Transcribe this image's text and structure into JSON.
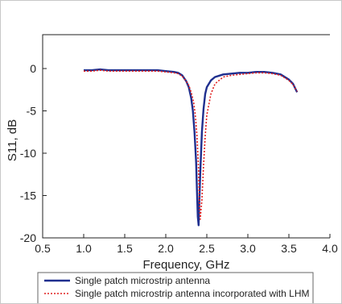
{
  "chart_data": {
    "type": "line",
    "title": "",
    "xlabel": "Frequency, GHz",
    "ylabel": "S11, dB",
    "xlim": [
      0.5,
      4.0
    ],
    "ylim": [
      -20,
      4
    ],
    "x_ticks": [
      "0.5",
      "1.0",
      "1.5",
      "2.0",
      "2.5",
      "3.0",
      "3.5",
      "4.0"
    ],
    "y_ticks": [
      "0",
      "-5",
      "-10",
      "-15",
      "-20"
    ],
    "grid": false,
    "legend_position": "bottom",
    "series": [
      {
        "name": "Single patch microstrip antenna",
        "color": "#1f2f8f",
        "style": "solid",
        "x": [
          1.0,
          1.1,
          1.2,
          1.3,
          1.4,
          1.5,
          1.6,
          1.7,
          1.8,
          1.9,
          2.0,
          2.1,
          2.15,
          2.2,
          2.25,
          2.28,
          2.31,
          2.33,
          2.35,
          2.37,
          2.38,
          2.39,
          2.4,
          2.42,
          2.44,
          2.46,
          2.48,
          2.5,
          2.55,
          2.6,
          2.7,
          2.8,
          2.9,
          3.0,
          3.1,
          3.2,
          3.3,
          3.4,
          3.5,
          3.55,
          3.6
        ],
        "y": [
          -0.2,
          -0.2,
          -0.1,
          -0.2,
          -0.2,
          -0.2,
          -0.2,
          -0.2,
          -0.2,
          -0.2,
          -0.3,
          -0.4,
          -0.5,
          -0.8,
          -1.5,
          -2.2,
          -3.5,
          -5.0,
          -7.5,
          -11.0,
          -14.5,
          -17.5,
          -18.5,
          -12.5,
          -7.5,
          -4.8,
          -3.0,
          -2.2,
          -1.4,
          -1.0,
          -0.7,
          -0.6,
          -0.5,
          -0.5,
          -0.4,
          -0.4,
          -0.5,
          -0.7,
          -1.3,
          -1.8,
          -2.8
        ]
      },
      {
        "name": "Single patch microstrip antenna incorporated with LHM",
        "color": "#e02020",
        "style": "dotted",
        "x": [
          1.0,
          1.1,
          1.2,
          1.3,
          1.4,
          1.5,
          1.6,
          1.7,
          1.8,
          1.9,
          2.0,
          2.1,
          2.15,
          2.2,
          2.25,
          2.28,
          2.31,
          2.34,
          2.36,
          2.38,
          2.4,
          2.41,
          2.42,
          2.44,
          2.46,
          2.48,
          2.5,
          2.55,
          2.6,
          2.7,
          2.8,
          2.9,
          3.0,
          3.1,
          3.2,
          3.3,
          3.4,
          3.5,
          3.55,
          3.6
        ],
        "y": [
          -0.3,
          -0.3,
          -0.2,
          -0.3,
          -0.3,
          -0.3,
          -0.3,
          -0.3,
          -0.3,
          -0.3,
          -0.4,
          -0.5,
          -0.6,
          -0.9,
          -1.5,
          -2.0,
          -2.8,
          -4.0,
          -5.5,
          -8.0,
          -12.0,
          -16.0,
          -17.8,
          -15.5,
          -11.5,
          -8.0,
          -5.5,
          -3.0,
          -1.8,
          -1.0,
          -0.8,
          -0.7,
          -0.6,
          -0.5,
          -0.5,
          -0.6,
          -0.8,
          -1.4,
          -1.9,
          -2.7
        ]
      }
    ]
  }
}
